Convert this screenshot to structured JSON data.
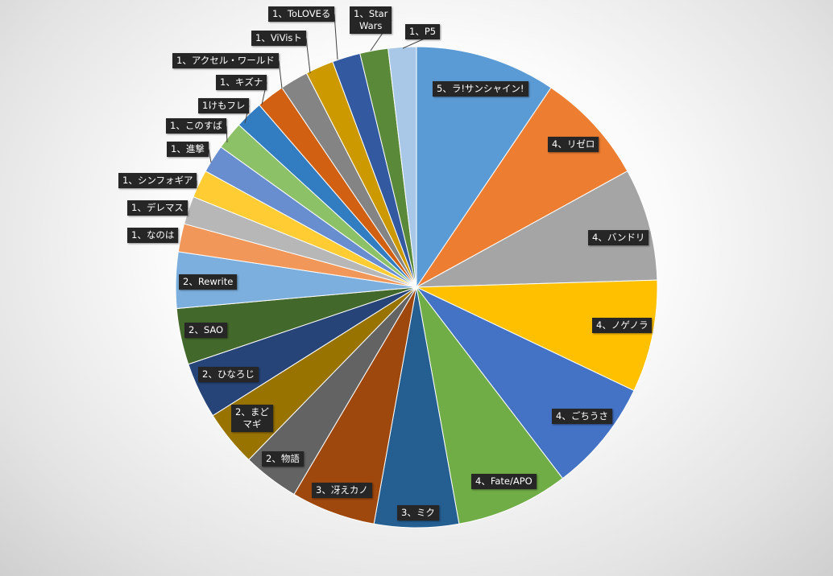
{
  "chart_data": {
    "type": "pie",
    "start_angle_deg": 0,
    "direction": "clockwise",
    "legend": "none",
    "slices": [
      {
        "label": "5、ラ!サンシャイン!",
        "value": 5,
        "color": "#5B9BD5"
      },
      {
        "label": "4、リゼロ",
        "value": 4,
        "color": "#ED7D31"
      },
      {
        "label": "4、バンドリ",
        "value": 4,
        "color": "#A5A5A5"
      },
      {
        "label": "4、ノゲノラ",
        "value": 4,
        "color": "#FFC000"
      },
      {
        "label": "4、ごちうさ",
        "value": 4,
        "color": "#4472C4"
      },
      {
        "label": "4、Fate/APO",
        "value": 4,
        "color": "#70AD47"
      },
      {
        "label": "3、ミク",
        "value": 3,
        "color": "#255E91"
      },
      {
        "label": "3、冴えカノ",
        "value": 3,
        "color": "#9E480E"
      },
      {
        "label": "2、物語",
        "value": 2,
        "color": "#636363"
      },
      {
        "label": "2、まど\nマギ",
        "value": 2,
        "color": "#997300"
      },
      {
        "label": "2、ひなろじ",
        "value": 2,
        "color": "#264478"
      },
      {
        "label": "2、SAO",
        "value": 2,
        "color": "#43682B"
      },
      {
        "label": "2、Rewrite",
        "value": 2,
        "color": "#7CAFDD"
      },
      {
        "label": "1、なのは",
        "value": 1,
        "color": "#F1975A"
      },
      {
        "label": "1、デレマス",
        "value": 1,
        "color": "#B7B7B7"
      },
      {
        "label": "1、シンフォギア",
        "value": 1,
        "color": "#FFCD33"
      },
      {
        "label": "1、進撃",
        "value": 1,
        "color": "#698ED0"
      },
      {
        "label": "1、このすば",
        "value": 1,
        "color": "#8CC168"
      },
      {
        "label": "1けもフレ",
        "value": 1,
        "color": "#327DC2"
      },
      {
        "label": "1、キズナ",
        "value": 1,
        "color": "#D26012"
      },
      {
        "label": "1、アクセル・ワールド",
        "value": 1,
        "color": "#848484"
      },
      {
        "label": "1、ViVisト",
        "value": 1,
        "color": "#CC9A00"
      },
      {
        "label": "1、ToLOVEる",
        "value": 1,
        "color": "#335AA1"
      },
      {
        "label": "1、Star\nWars",
        "value": 1,
        "color": "#5A8A39"
      },
      {
        "label": "1、P5",
        "value": 1,
        "color": "#A9C8E8"
      }
    ]
  }
}
